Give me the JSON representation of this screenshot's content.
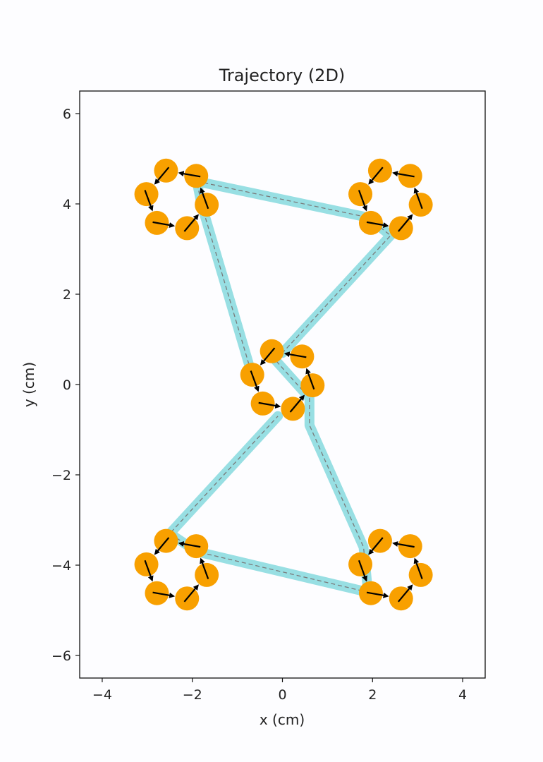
{
  "chart_data": {
    "type": "scatter",
    "title": "Trajectory (2D)",
    "xlabel": "x (cm)",
    "ylabel": "y (cm)",
    "xlim": [
      -4.5,
      4.5
    ],
    "ylim": [
      -6.5,
      6.5
    ],
    "xticks": [
      -4,
      -2,
      0,
      2,
      4
    ],
    "yticks": [
      -6,
      -4,
      -2,
      0,
      2,
      4,
      6
    ],
    "xtick_labels": [
      "−4",
      "−2",
      "0",
      "2",
      "4"
    ],
    "ytick_labels": [
      "−6",
      "−4",
      "−2",
      "0",
      "2",
      "4",
      "6"
    ],
    "grid": false,
    "legend": "none",
    "path_color": "#98dfe3",
    "path_dash_color": "#7a7a7a",
    "point_color": "#f8a000",
    "arrow_color": "#000000",
    "path": [
      {
        "x": -0.7,
        "y": 0.3
      },
      {
        "x": -1.8,
        "y": 4.0
      },
      {
        "x": -1.9,
        "y": 4.5
      },
      {
        "x": 1.9,
        "y": 3.7
      },
      {
        "x": 2.4,
        "y": 3.3
      },
      {
        "x": 0.0,
        "y": 0.7
      },
      {
        "x": -0.3,
        "y": 0.7
      },
      {
        "x": 0.6,
        "y": -0.3
      },
      {
        "x": 0.6,
        "y": -0.9
      },
      {
        "x": 1.8,
        "y": -3.6
      },
      {
        "x": 1.9,
        "y": -4.6
      },
      {
        "x": -1.9,
        "y": -3.7
      },
      {
        "x": -2.5,
        "y": -3.3
      },
      {
        "x": -0.1,
        "y": -0.7
      }
    ],
    "clusters": [
      {
        "name": "",
        "cx": -2.35,
        "cy": 4.1,
        "r": 0.68
      },
      {
        "name": "",
        "cx": 2.4,
        "cy": 4.1,
        "r": 0.68
      },
      {
        "name": "",
        "cx": 0.0,
        "cy": 0.1,
        "r": 0.68
      },
      {
        "name": "",
        "cx": -2.35,
        "cy": -4.1,
        "r": 0.68
      },
      {
        "name": "",
        "cx": 2.4,
        "cy": -4.1,
        "r": 0.68
      }
    ],
    "points_per_cluster": 6
  }
}
